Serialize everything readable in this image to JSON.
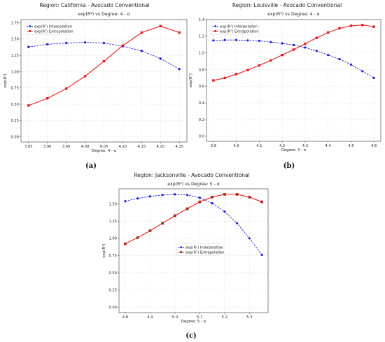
{
  "chart_data": [
    {
      "type": "line",
      "panel_title": "Region: California - Avocado Conventional",
      "title": "exp(R²) vs Degree: 4 - α",
      "xlabel": "Degree: 4 - α",
      "ylabel": "exp(R²)",
      "caption": "(a)",
      "x": [
        3.85,
        3.9,
        3.95,
        4.0,
        4.05,
        4.1,
        4.15,
        4.2,
        4.25
      ],
      "xticks": [
        "3.85",
        "3.90",
        "3.95",
        "4.00",
        "4.05",
        "4.10",
        "4.15",
        "4.20",
        "4.25"
      ],
      "xlim": [
        3.83,
        4.27
      ],
      "ylim": [
        -0.08,
        1.8
      ],
      "yticks": [
        "0.00",
        "0.25",
        "0.50",
        "0.75",
        "1.00",
        "1.25",
        "1.50",
        "1.75"
      ],
      "legend_position": "upper-left",
      "grid": true,
      "series": [
        {
          "name": "exp(R²) Interpolation",
          "style": "dashed",
          "color": "#1a1adb",
          "marker": "circle",
          "values": [
            1.38,
            1.42,
            1.44,
            1.45,
            1.44,
            1.39,
            1.32,
            1.2,
            1.04
          ]
        },
        {
          "name": "exp(R²) Extrapolation",
          "style": "solid",
          "color": "#e8191c",
          "marker": "square",
          "values": [
            0.48,
            0.59,
            0.74,
            0.93,
            1.16,
            1.4,
            1.6,
            1.7,
            1.6
          ]
        }
      ]
    },
    {
      "type": "line",
      "panel_title": "Region: Louisville - Avocado Conventional",
      "title": "exp(R²) vs Degree: 4 - α",
      "xlabel": "Degree: 4 - α",
      "ylabel": "exp(R²)",
      "caption": "(b)",
      "x": [
        3.9,
        3.95,
        4.0,
        4.05,
        4.1,
        4.15,
        4.2,
        4.25,
        4.3,
        4.35,
        4.4,
        4.45,
        4.5,
        4.55,
        4.6
      ],
      "xticks": [
        "3.9",
        "4.0",
        "4.1",
        "4.2",
        "4.3",
        "4.4",
        "4.5",
        "4.6"
      ],
      "xtick_values": [
        3.9,
        4.0,
        4.1,
        4.2,
        4.3,
        4.4,
        4.5,
        4.6
      ],
      "xlim": [
        3.87,
        4.63
      ],
      "ylim": [
        -0.06,
        1.4
      ],
      "yticks": [
        "0.0",
        "0.2",
        "0.4",
        "0.6",
        "0.8",
        "1.0",
        "1.2",
        "1.4"
      ],
      "legend_position": "upper-left",
      "grid": true,
      "series": [
        {
          "name": "exp(R²) Interpolation",
          "style": "dashed",
          "color": "#1a1adb",
          "marker": "circle",
          "values": [
            1.15,
            1.155,
            1.155,
            1.15,
            1.145,
            1.13,
            1.115,
            1.095,
            1.065,
            1.025,
            0.975,
            0.925,
            0.86,
            0.78,
            0.7
          ]
        },
        {
          "name": "exp(R²) Extrapolation",
          "style": "solid",
          "color": "#e8191c",
          "marker": "square",
          "values": [
            0.67,
            0.7,
            0.745,
            0.795,
            0.85,
            0.91,
            0.975,
            1.04,
            1.11,
            1.18,
            1.245,
            1.295,
            1.325,
            1.335,
            1.315
          ]
        }
      ]
    },
    {
      "type": "line",
      "panel_title": "Region: Jacksonville - Avocado Conventional",
      "title": "exp(R²) vs Degree: 5 - α",
      "xlabel": "Degree: 5 - α",
      "ylabel": "exp(R²)",
      "caption": "(c)",
      "x": [
        4.8,
        4.85,
        4.9,
        4.95,
        5.0,
        5.05,
        5.1,
        5.15,
        5.2,
        5.25,
        5.3,
        5.35
      ],
      "xticks": [
        "4.8",
        "4.9",
        "5.0",
        "5.1",
        "5.2",
        "5.3"
      ],
      "xtick_values": [
        4.8,
        4.9,
        5.0,
        5.1,
        5.2,
        5.3
      ],
      "xlim": [
        4.775,
        5.375
      ],
      "ylim": [
        -0.08,
        1.72
      ],
      "yticks": [
        "0.00",
        "0.25",
        "0.50",
        "0.75",
        "1.00",
        "1.25",
        "1.50"
      ],
      "legend_position": "center",
      "grid": true,
      "series": [
        {
          "name": "exp(R²) Interpolation",
          "style": "dashed",
          "color": "#1a1adb",
          "marker": "circle",
          "values": [
            1.54,
            1.58,
            1.61,
            1.63,
            1.64,
            1.63,
            1.59,
            1.51,
            1.39,
            1.22,
            1.0,
            0.76
          ]
        },
        {
          "name": "exp(R²) Extrapolation",
          "style": "solid",
          "color": "#e8191c",
          "marker": "square",
          "values": [
            0.92,
            1.01,
            1.11,
            1.22,
            1.33,
            1.43,
            1.53,
            1.6,
            1.64,
            1.64,
            1.6,
            1.53
          ]
        }
      ]
    }
  ]
}
